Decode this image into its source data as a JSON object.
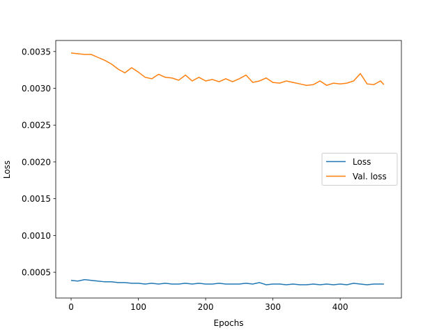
{
  "chart_data": {
    "type": "line",
    "xlabel": "Epochs",
    "ylabel": "Loss",
    "x": [
      0,
      10,
      20,
      30,
      40,
      50,
      60,
      70,
      80,
      90,
      100,
      110,
      120,
      130,
      140,
      150,
      160,
      170,
      180,
      190,
      200,
      210,
      220,
      230,
      240,
      250,
      260,
      270,
      280,
      290,
      300,
      310,
      320,
      330,
      340,
      350,
      360,
      370,
      380,
      390,
      400,
      410,
      420,
      430,
      440,
      450,
      460,
      465
    ],
    "series": [
      {
        "name": "Loss",
        "color": "#1f77b4",
        "values": [
          0.00039,
          0.00038,
          0.0004,
          0.00039,
          0.00038,
          0.00037,
          0.00037,
          0.00036,
          0.00036,
          0.00035,
          0.00035,
          0.00034,
          0.00035,
          0.00034,
          0.00035,
          0.00034,
          0.00034,
          0.00035,
          0.00034,
          0.00035,
          0.00034,
          0.00034,
          0.00035,
          0.00034,
          0.00034,
          0.00034,
          0.00035,
          0.00034,
          0.00036,
          0.00033,
          0.00034,
          0.00034,
          0.00033,
          0.00034,
          0.00033,
          0.00033,
          0.00034,
          0.00033,
          0.00034,
          0.00033,
          0.00034,
          0.00033,
          0.00035,
          0.00034,
          0.00033,
          0.00034,
          0.00034,
          0.00034
        ]
      },
      {
        "name": "Val. loss",
        "color": "#ff7f0e",
        "values": [
          0.00348,
          0.00347,
          0.00346,
          0.00346,
          0.00342,
          0.00338,
          0.00333,
          0.00326,
          0.00321,
          0.00328,
          0.00322,
          0.00315,
          0.00313,
          0.00319,
          0.00315,
          0.00314,
          0.00311,
          0.00318,
          0.0031,
          0.00315,
          0.0031,
          0.00312,
          0.00309,
          0.00313,
          0.00309,
          0.00313,
          0.00318,
          0.00308,
          0.0031,
          0.00314,
          0.00308,
          0.00307,
          0.0031,
          0.00308,
          0.00306,
          0.00304,
          0.00305,
          0.0031,
          0.00304,
          0.00307,
          0.00306,
          0.00307,
          0.0031,
          0.0032,
          0.00306,
          0.00305,
          0.0031,
          0.00305
        ]
      }
    ],
    "xlim": [
      -22.8,
      491
    ],
    "ylim": [
      0.00015,
      0.00365
    ],
    "xticks": [
      0,
      100,
      200,
      300,
      400
    ],
    "yticks": [
      0.0005,
      {
        "value": 0.001,
        "label": "0.0010"
      },
      0.0015,
      {
        "value": 0.002,
        "label": "0.0020"
      },
      0.0025,
      {
        "value": 0.003,
        "label": "0.0030"
      },
      0.0035
    ],
    "legend": "center right"
  }
}
